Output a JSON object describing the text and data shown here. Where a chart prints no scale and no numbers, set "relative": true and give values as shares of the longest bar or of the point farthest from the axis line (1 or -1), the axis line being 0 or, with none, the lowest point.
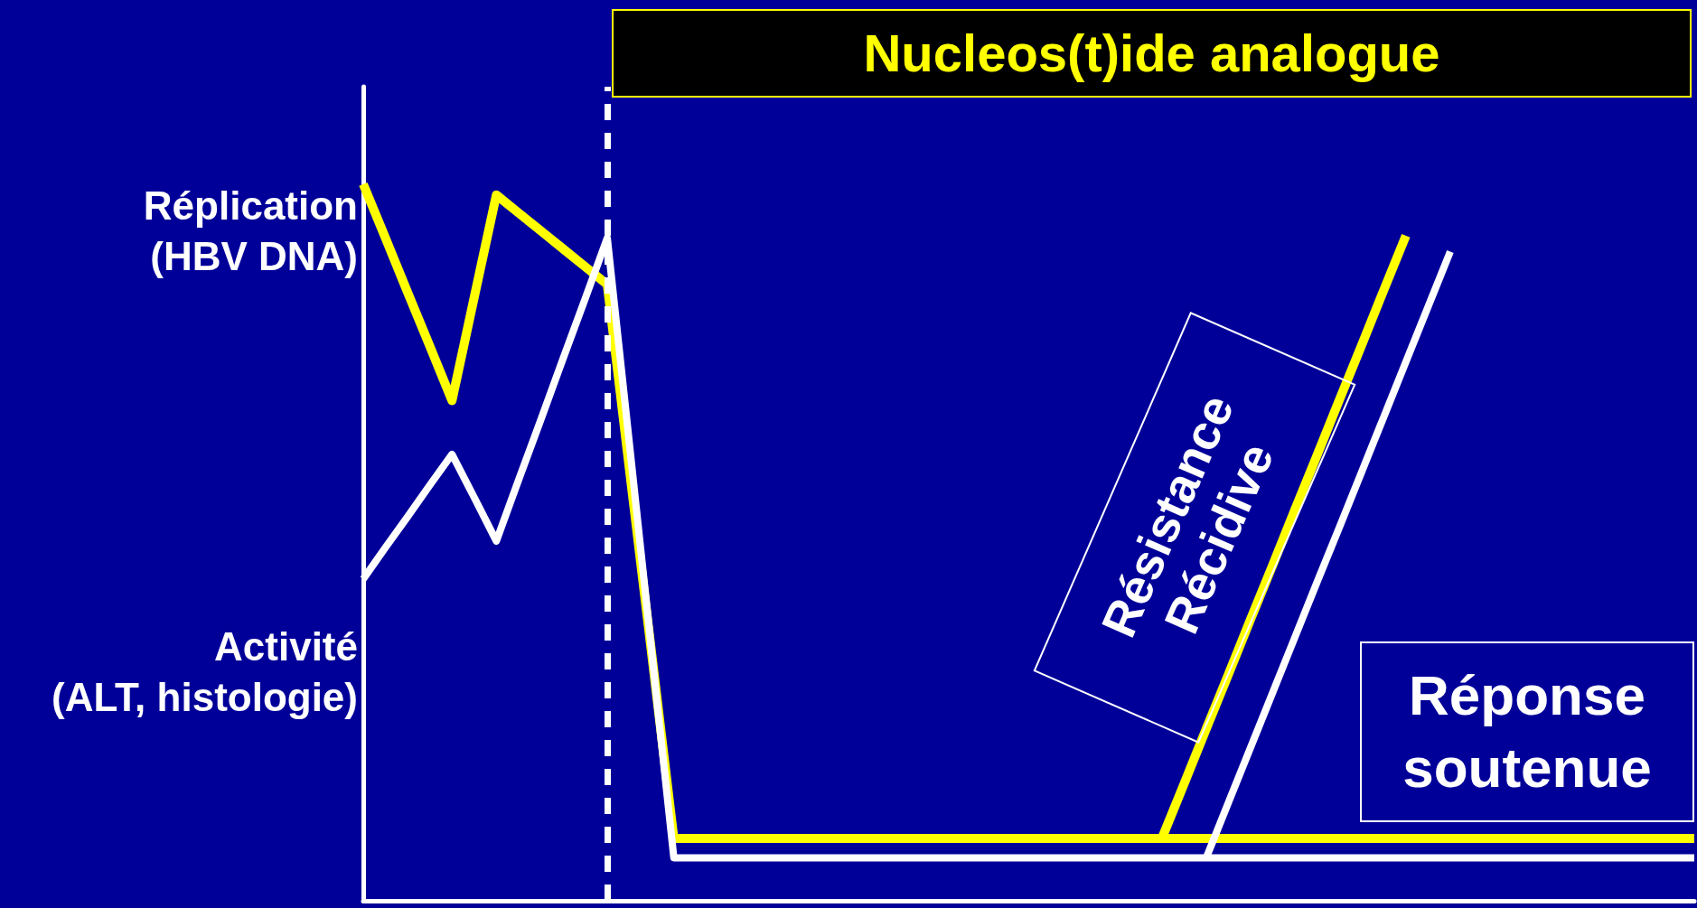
{
  "chart_data": {
    "type": "line",
    "relative": true,
    "legend": false,
    "marker": "none",
    "grid": false,
    "categories": [
      null,
      null,
      null,
      null,
      null,
      null,
      null,
      null,
      null,
      null,
      null,
      null,
      null,
      null,
      null,
      null,
      null,
      null,
      null,
      null,
      null,
      null,
      null,
      null,
      null,
      null,
      null,
      null,
      null,
      null,
      null,
      null,
      null,
      null,
      null,
      null,
      null,
      null,
      null,
      null,
      null,
      null,
      null,
      null,
      null,
      null,
      null,
      null,
      null,
      null,
      null,
      null,
      null,
      null,
      null,
      null,
      null,
      null,
      null,
      null,
      null
    ],
    "series": [
      {
        "name": "Réplication\n(HBV DNA)",
        "color": "#ffff00",
        "values": [
          1.0,
          0.925,
          0.849,
          0.774,
          0.698,
          0.842,
          0.985,
          0.96,
          0.935,
          0.91,
          0.885,
          0.86,
          0.602,
          0.345,
          0.087,
          0.087,
          0.087,
          0.087,
          0.087,
          0.087,
          0.087,
          0.087,
          0.087,
          0.087,
          0.087,
          0.087,
          0.087,
          0.087,
          0.087,
          0.087,
          0.087,
          0.087,
          0.087,
          0.087,
          0.087,
          0.087,
          0.087,
          0.087,
          0.087,
          0.087,
          0.087,
          0.087,
          0.087,
          0.087,
          0.087,
          0.087,
          0.087,
          0.087,
          0.087,
          0.087,
          0.087,
          0.087,
          0.087,
          0.087,
          0.087,
          0.087,
          0.087,
          0.087,
          0.087,
          0.087,
          0.087
        ]
      },
      {
        "color": "#ffff00",
        "values": [
          null,
          null,
          null,
          null,
          null,
          null,
          null,
          null,
          null,
          null,
          null,
          null,
          null,
          null,
          null,
          null,
          null,
          null,
          null,
          null,
          null,
          null,
          null,
          null,
          null,
          null,
          null,
          null,
          null,
          null,
          null,
          null,
          null,
          null,
          null,
          null,
          0.087,
          0.163,
          0.24,
          0.316,
          0.393,
          0.469,
          0.546,
          0.622,
          0.699,
          0.775,
          0.852,
          0.928,
          null,
          null,
          null,
          null,
          null,
          null,
          null,
          null,
          null,
          null,
          null,
          null,
          null
        ]
      },
      {
        "name": "Activité\n(ALT, histologie)",
        "color": "#ffffff",
        "values": [
          0.449,
          0.493,
          0.536,
          0.58,
          0.623,
          0.563,
          0.502,
          0.587,
          0.671,
          0.756,
          0.84,
          0.925,
          0.637,
          0.348,
          0.06,
          0.06,
          0.06,
          0.06,
          0.06,
          0.06,
          0.06,
          0.06,
          0.06,
          0.06,
          0.06,
          0.06,
          0.06,
          0.06,
          0.06,
          0.06,
          0.06,
          0.06,
          0.06,
          0.06,
          0.06,
          0.06,
          0.06,
          0.06,
          0.06,
          0.06,
          0.06,
          0.06,
          0.06,
          0.06,
          0.06,
          0.06,
          0.06,
          0.06,
          0.06,
          0.06,
          0.06,
          0.06,
          0.06,
          0.06,
          0.06,
          0.06,
          0.06,
          0.06,
          0.06,
          0.06,
          0.06
        ]
      },
      {
        "color": "#ffffff",
        "values": [
          null,
          null,
          null,
          null,
          null,
          null,
          null,
          null,
          null,
          null,
          null,
          null,
          null,
          null,
          null,
          null,
          null,
          null,
          null,
          null,
          null,
          null,
          null,
          null,
          null,
          null,
          null,
          null,
          null,
          null,
          null,
          null,
          null,
          null,
          null,
          null,
          null,
          null,
          0.06,
          0.137,
          0.214,
          0.291,
          0.368,
          0.445,
          0.521,
          0.598,
          0.675,
          0.752,
          0.829,
          0.906,
          null,
          null,
          null,
          null,
          null,
          null,
          null,
          null,
          null,
          null,
          null
        ]
      }
    ],
    "annotations": [
      "Nucleos(t)ide analogue",
      "Résistance",
      "Récidive",
      "Réponse\nsoutenue"
    ]
  }
}
